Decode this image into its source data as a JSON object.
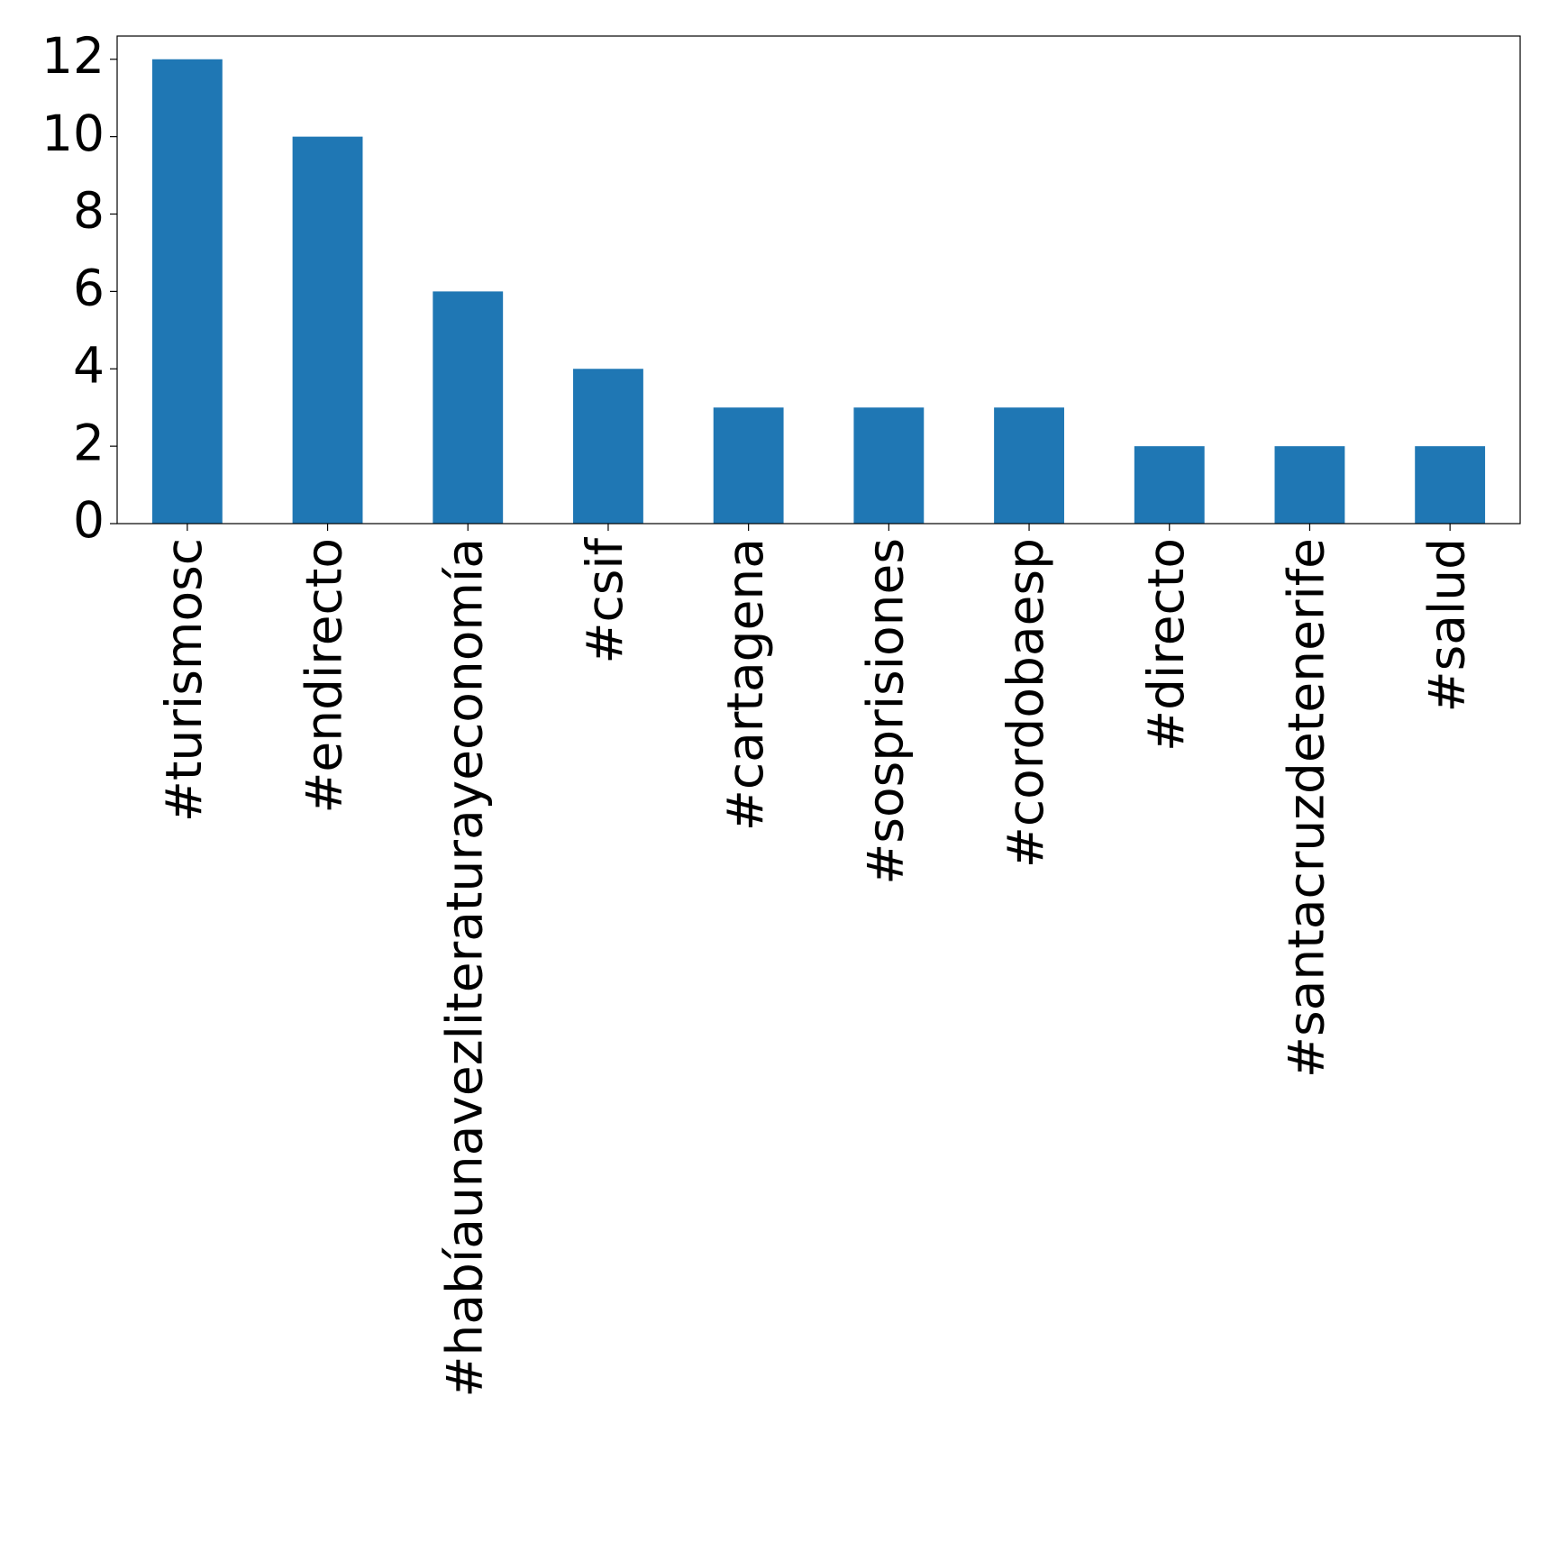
{
  "chart_data": {
    "type": "bar",
    "categories": [
      "#turismosc",
      "#endirecto",
      "#habíaunavezliteraturayeconomía",
      "#csif",
      "#cartagena",
      "#sosprisiones",
      "#cordobaesp",
      "#directo",
      "#santacruzdetenerife",
      "#salud"
    ],
    "values": [
      12,
      10,
      6,
      4,
      3,
      3,
      3,
      2,
      2,
      2
    ],
    "color": "#1f77b4",
    "ylim": [
      0,
      12.6
    ],
    "yticks": [
      0,
      2,
      4,
      6,
      8,
      10,
      12
    ],
    "grid": false
  }
}
